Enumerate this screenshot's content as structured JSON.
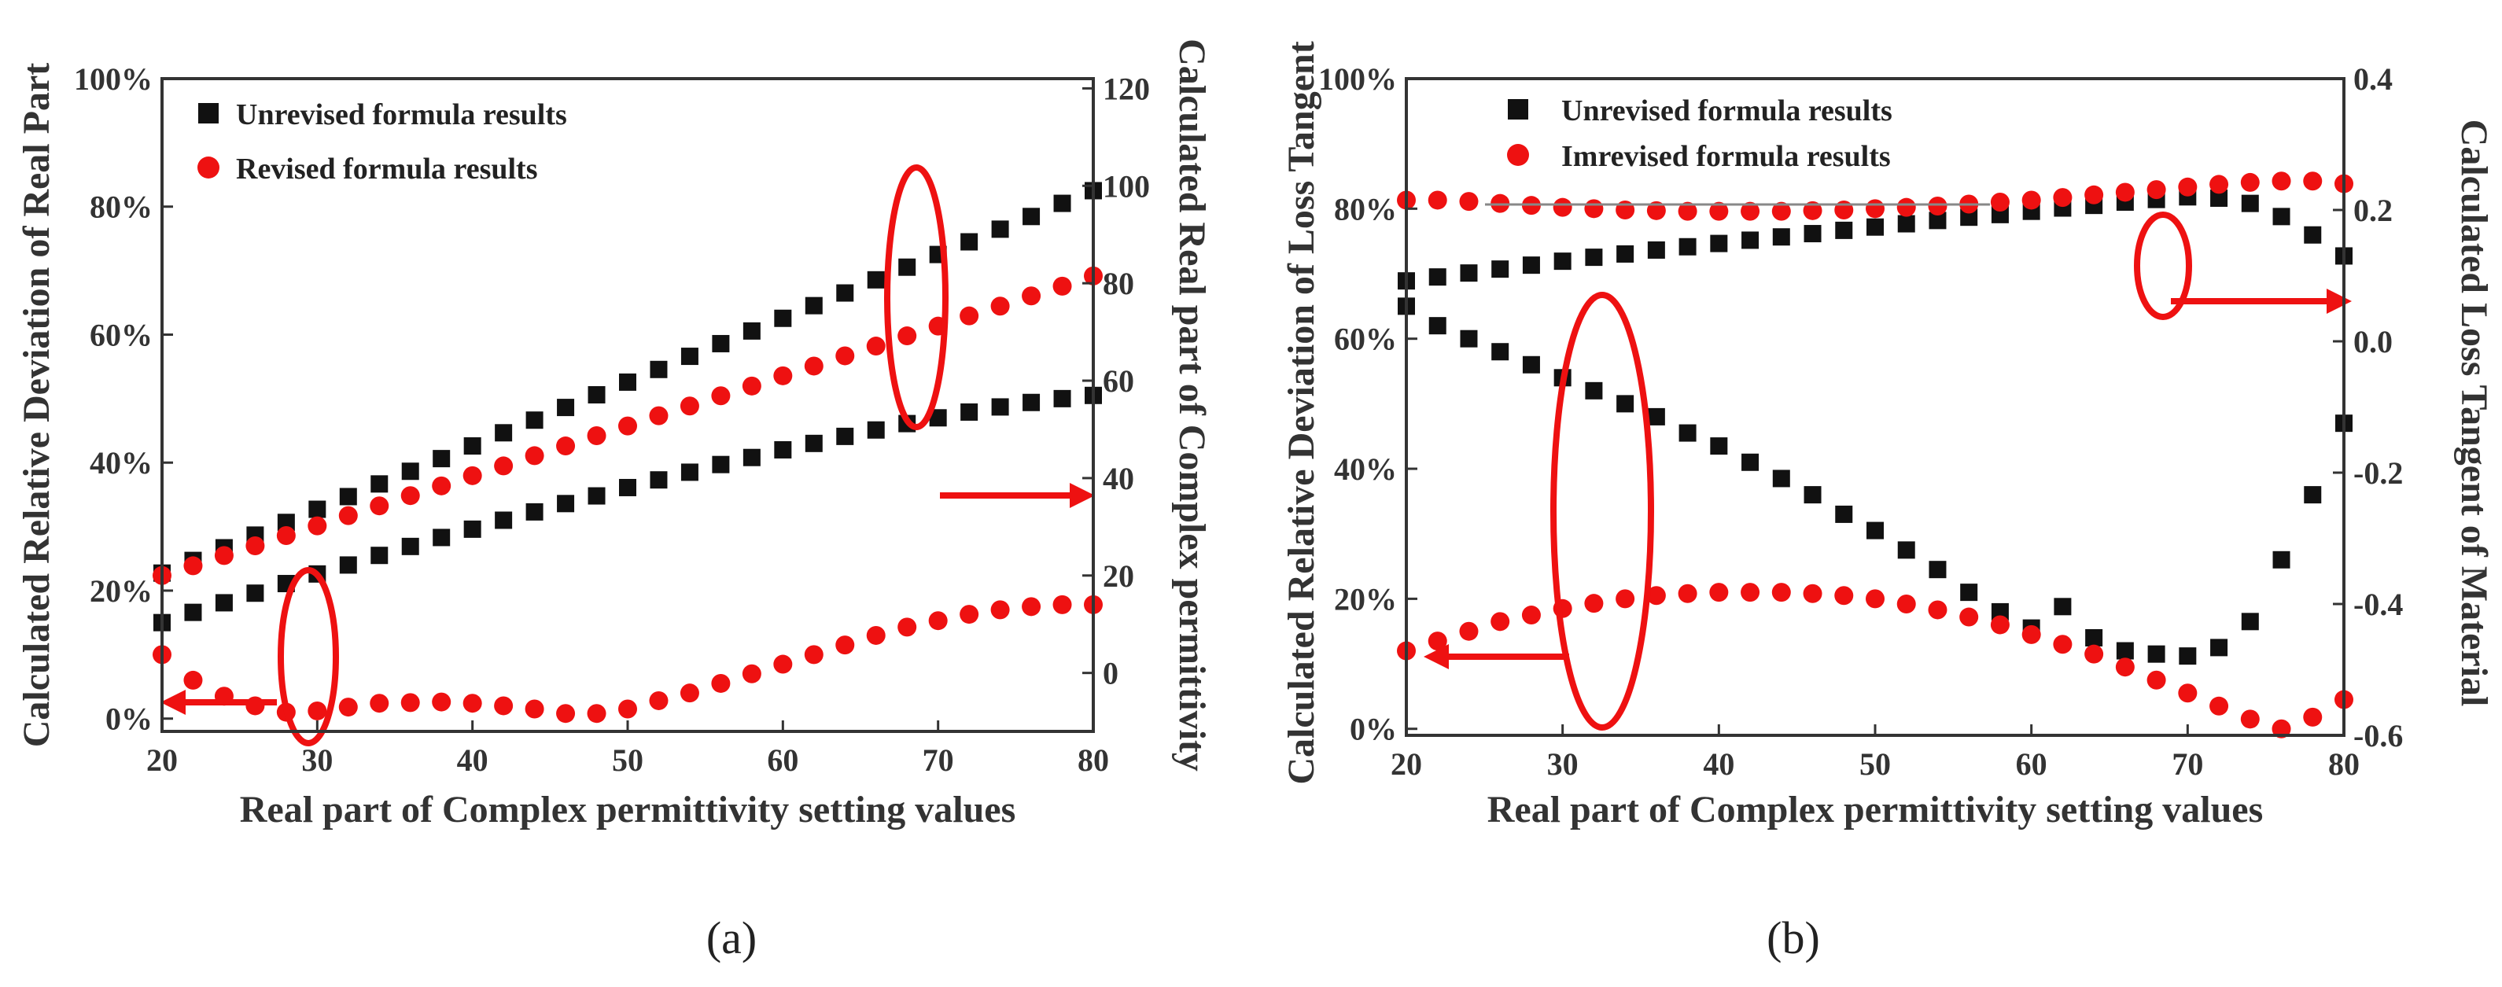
{
  "colors": {
    "unrevised": "#111111",
    "revised": "#ee1111",
    "annotation": "#ee1111",
    "axis": "#333333"
  },
  "chart_data": [
    {
      "panel": "a",
      "caption": "(a)",
      "type": "scatter",
      "xlabel": "Real part of Complex permittivity setting values",
      "ylabel_left": "Calculated Relative Deviation of Real Part",
      "ylabel_right": "Calculated Real part of Complex permittivity",
      "xlim": [
        20,
        80
      ],
      "ylim_left": [
        -2,
        100
      ],
      "ylim_right": [
        -12,
        122
      ],
      "x_ticks": [
        "20",
        "30",
        "40",
        "50",
        "60",
        "70",
        "80"
      ],
      "y_left_ticks": [
        "0%",
        "20%",
        "40%",
        "60%",
        "80%",
        "100%"
      ],
      "y_right_ticks": [
        "0",
        "20",
        "40",
        "60",
        "80",
        "100",
        "120"
      ],
      "legend": {
        "position": "top-left",
        "entries": [
          "Unrevised formula results",
          "Revised formula results"
        ]
      },
      "series": [
        {
          "name": "Unrevised formula results",
          "axis": "right",
          "marker": "square",
          "x": [
            20,
            22,
            24,
            26,
            28,
            30,
            32,
            34,
            36,
            38,
            40,
            42,
            44,
            46,
            48,
            50,
            52,
            54,
            56,
            58,
            60,
            62,
            64,
            66,
            68,
            70,
            72,
            74,
            76,
            78,
            80
          ],
          "y": [
            20.5,
            23.1,
            25.7,
            28.3,
            30.9,
            33.6,
            36.2,
            38.8,
            41.4,
            44.0,
            46.6,
            49.3,
            51.9,
            54.5,
            57.1,
            59.7,
            62.3,
            65.0,
            67.6,
            70.2,
            72.8,
            75.4,
            78.0,
            80.7,
            83.3,
            85.9,
            88.5,
            91.1,
            93.7,
            96.4,
            99.0
          ]
        },
        {
          "name": "Revised formula results",
          "axis": "right",
          "marker": "circle",
          "x": [
            20,
            22,
            24,
            26,
            28,
            30,
            32,
            34,
            36,
            38,
            40,
            42,
            44,
            46,
            48,
            50,
            52,
            54,
            56,
            58,
            60,
            62,
            64,
            66,
            68,
            70,
            72,
            74,
            76,
            78,
            80
          ],
          "y": [
            20.0,
            22.0,
            24.1,
            26.1,
            28.2,
            30.2,
            32.3,
            34.3,
            36.4,
            38.4,
            40.5,
            42.5,
            44.6,
            46.6,
            48.7,
            50.7,
            52.8,
            54.8,
            56.9,
            58.9,
            61.0,
            63.0,
            65.1,
            67.1,
            69.2,
            71.2,
            73.3,
            75.3,
            77.4,
            79.4,
            81.5
          ]
        },
        {
          "name": "Unrevised formula results",
          "axis": "left",
          "marker": "square",
          "x": [
            20,
            22,
            24,
            26,
            28,
            30,
            32,
            34,
            36,
            38,
            40,
            42,
            44,
            46,
            48,
            50,
            52,
            54,
            56,
            58,
            60,
            62,
            64,
            66,
            68,
            70,
            72,
            74,
            76,
            78,
            80
          ],
          "y": [
            15.0,
            16.6,
            18.1,
            19.6,
            21.1,
            22.6,
            24.0,
            25.5,
            26.9,
            28.3,
            29.6,
            31.0,
            32.3,
            33.6,
            34.8,
            36.1,
            37.3,
            38.5,
            39.7,
            40.8,
            42.0,
            43.0,
            44.1,
            45.1,
            46.1,
            47.0,
            47.9,
            48.7,
            49.4,
            50.0,
            50.5
          ]
        },
        {
          "name": "Revised formula results",
          "axis": "left",
          "marker": "circle",
          "x": [
            20,
            22,
            24,
            26,
            28,
            30,
            32,
            34,
            36,
            38,
            40,
            42,
            44,
            46,
            48,
            50,
            52,
            54,
            56,
            58,
            60,
            62,
            64,
            66,
            68,
            70,
            72,
            74,
            76,
            78,
            80
          ],
          "y": [
            10.0,
            6.0,
            3.5,
            2.0,
            1.0,
            1.2,
            1.8,
            2.4,
            2.5,
            2.6,
            2.4,
            2.0,
            1.5,
            0.8,
            0.8,
            1.5,
            2.8,
            4.0,
            5.5,
            7.0,
            8.5,
            10.0,
            11.5,
            13.0,
            14.3,
            15.3,
            16.3,
            17.0,
            17.5,
            17.8,
            17.8
          ]
        }
      ]
    },
    {
      "panel": "b",
      "caption": "(b)",
      "type": "scatter",
      "xlabel": "Real part of Complex permittivity setting values",
      "ylabel_left": "Calculated Relative Deviation of Loss Tangent",
      "ylabel_right": "Calculated Loss Tangent of Material",
      "xlim": [
        20,
        80
      ],
      "ylim_left": [
        -1,
        100
      ],
      "ylim_right": [
        -0.6,
        0.4
      ],
      "x_ticks": [
        "20",
        "30",
        "40",
        "50",
        "60",
        "70",
        "80"
      ],
      "y_left_ticks": [
        "0%",
        "20%",
        "40%",
        "60%",
        "80%",
        "100%"
      ],
      "y_right_ticks": [
        "-0.6",
        "-0.4",
        "-0.2",
        "0.0",
        "0.2",
        "0.4"
      ],
      "legend": {
        "position": "top-left",
        "entries": [
          "Unrevised formula results",
          "Imrevised formula results"
        ]
      },
      "series": [
        {
          "name": "Unrevised formula results",
          "axis": "right",
          "marker": "square",
          "x": [
            20,
            22,
            24,
            26,
            28,
            30,
            32,
            34,
            36,
            38,
            40,
            42,
            44,
            46,
            48,
            50,
            52,
            54,
            56,
            58,
            60,
            62,
            64,
            66,
            68,
            70,
            72,
            74,
            76,
            78,
            80
          ],
          "y": [
            0.092,
            0.098,
            0.104,
            0.11,
            0.116,
            0.122,
            0.128,
            0.133,
            0.139,
            0.144,
            0.149,
            0.154,
            0.159,
            0.164,
            0.169,
            0.174,
            0.179,
            0.184,
            0.189,
            0.193,
            0.198,
            0.203,
            0.207,
            0.212,
            0.216,
            0.22,
            0.218,
            0.21,
            0.19,
            0.162,
            0.13
          ]
        },
        {
          "name": "Imrevised formula results",
          "axis": "right",
          "marker": "circle",
          "x": [
            20,
            22,
            24,
            26,
            28,
            30,
            32,
            34,
            36,
            38,
            40,
            42,
            44,
            46,
            48,
            50,
            52,
            54,
            56,
            58,
            60,
            62,
            64,
            66,
            68,
            70,
            72,
            74,
            76,
            78,
            80
          ],
          "y": [
            0.215,
            0.215,
            0.213,
            0.21,
            0.207,
            0.204,
            0.202,
            0.2,
            0.199,
            0.198,
            0.198,
            0.198,
            0.198,
            0.199,
            0.2,
            0.202,
            0.204,
            0.206,
            0.209,
            0.212,
            0.215,
            0.219,
            0.223,
            0.227,
            0.231,
            0.235,
            0.239,
            0.242,
            0.244,
            0.244,
            0.24
          ]
        },
        {
          "name": "Unrevised formula results",
          "axis": "left",
          "marker": "square",
          "x": [
            20,
            22,
            24,
            26,
            28,
            30,
            32,
            34,
            36,
            38,
            40,
            42,
            44,
            46,
            48,
            50,
            52,
            54,
            56,
            58,
            60,
            62,
            64,
            66,
            68,
            70,
            72,
            74,
            76,
            78,
            80
          ],
          "y": [
            65,
            62,
            60,
            58,
            56,
            54,
            52,
            50,
            48,
            45.5,
            43.5,
            41,
            38.5,
            36,
            33,
            30.5,
            27.5,
            24.5,
            21,
            18,
            15.5,
            18.8,
            14,
            12,
            11.5,
            11.2,
            12.5,
            16.5,
            26,
            36,
            47
          ]
        },
        {
          "name": "Imrevised formula results",
          "axis": "left",
          "marker": "circle",
          "x": [
            20,
            22,
            24,
            26,
            28,
            30,
            32,
            34,
            36,
            38,
            40,
            42,
            44,
            46,
            48,
            50,
            52,
            54,
            56,
            58,
            60,
            62,
            64,
            66,
            68,
            70,
            72,
            74,
            76,
            78,
            80
          ],
          "y": [
            12,
            13.5,
            15,
            16.5,
            17.5,
            18.5,
            19.3,
            20,
            20.5,
            20.8,
            21,
            21,
            21,
            20.8,
            20.5,
            20,
            19.2,
            18.3,
            17.2,
            16,
            14.5,
            13,
            11.5,
            9.5,
            7.5,
            5.5,
            3.5,
            1.5,
            0,
            1.8,
            4.5
          ]
        }
      ]
    }
  ]
}
